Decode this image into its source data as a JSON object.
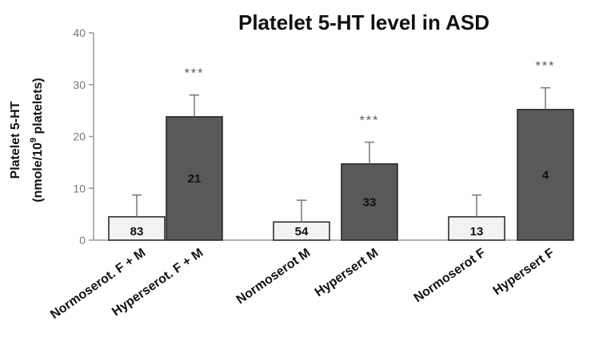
{
  "chart_data": {
    "type": "bar",
    "title": "Platelet 5-HT level in ASD",
    "ylabel_line1": "Platelet 5-HT",
    "ylabel_line2_pre": "(nmole/10",
    "ylabel_line2_sup": "9",
    "ylabel_line2_post": " platelets)",
    "ylim": [
      0,
      40
    ],
    "yticks": [
      "0",
      "10",
      "20",
      "30",
      "40"
    ],
    "grid": false,
    "colors": {
      "normo": "#f2f2f2",
      "hyper": "#595959"
    },
    "categories": [
      "Normoserot. F + M",
      "Hyperserot. F + M",
      "Normoserot M",
      "Hypersert M",
      "Normoserot F",
      "Hypersert F"
    ],
    "values": [
      4.5,
      23.8,
      3.5,
      14.7,
      4.5,
      25.2
    ],
    "errors": [
      4.2,
      4.2,
      4.2,
      4.2,
      4.2,
      4.2
    ],
    "n_labels": [
      "83",
      "21",
      "54",
      "33",
      "13",
      "4"
    ],
    "significance": [
      "",
      "***",
      "",
      "***",
      "",
      "***"
    ]
  }
}
